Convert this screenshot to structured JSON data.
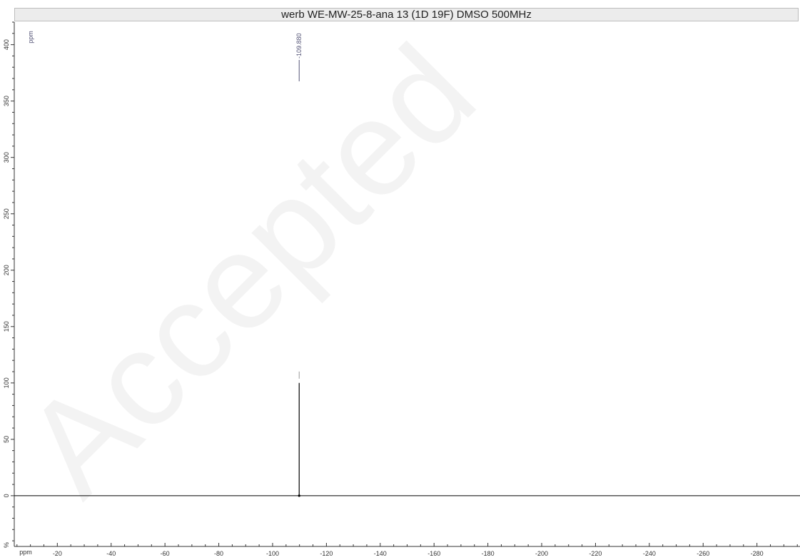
{
  "title": "werb WE-MW-25-8-ana 13 (1D 19F) DMSO 500MHz",
  "watermark": "Accepted",
  "colors": {
    "axis": "#333333",
    "spectrum": "#000000",
    "peak_label": "#555577"
  },
  "chart_data": {
    "type": "line",
    "title": "werb WE-MW-25-8-ana 13 (1D 19F) DMSO 500MHz",
    "xlabel": "ppm",
    "ylabel": "%",
    "y_unit_label": "ppm",
    "xlim": [
      -4,
      -296
    ],
    "ylim": [
      -45,
      420
    ],
    "x_ticks": [
      -20,
      -40,
      -60,
      -80,
      -100,
      -120,
      -140,
      -160,
      -180,
      -200,
      -220,
      -240,
      -260,
      -280
    ],
    "y_ticks": [
      0,
      50,
      100,
      150,
      200,
      250,
      300,
      350,
      400
    ],
    "grid": false,
    "baseline": 0,
    "peaks": [
      {
        "x": -109.88,
        "y": 100,
        "label": "-109.880"
      }
    ]
  }
}
